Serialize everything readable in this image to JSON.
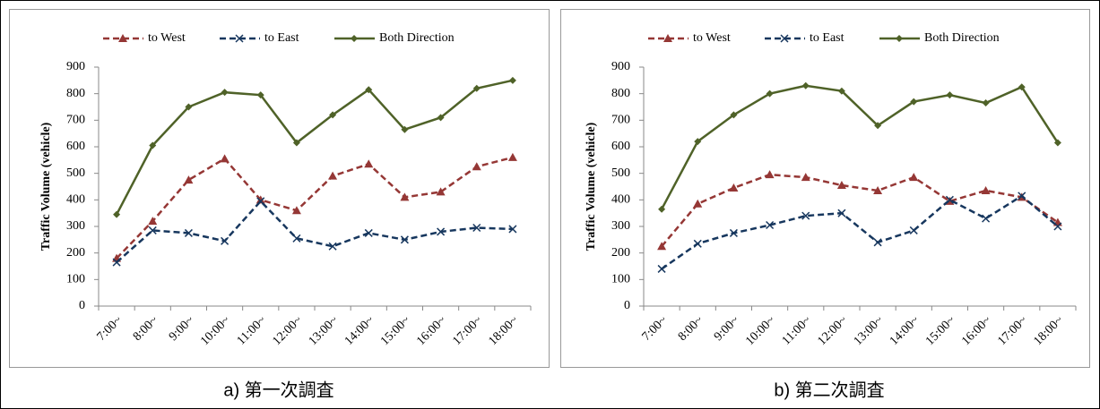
{
  "chart_data": [
    {
      "type": "line",
      "caption": "a)  第一次調査",
      "y_label": "Traffic Volume (vehicle)",
      "legend": "top",
      "categories": [
        "7:00~",
        "8:00~",
        "9:00~",
        "10:00~",
        "11:00~",
        "12:00~",
        "13:00~",
        "14:00~",
        "15:00~",
        "16:00~",
        "17:00~",
        "18:00~"
      ],
      "ylim": [
        0,
        900
      ],
      "yticks": [
        0,
        100,
        200,
        300,
        400,
        500,
        600,
        700,
        800,
        900
      ],
      "series": [
        {
          "name": "to West",
          "color": "#953735",
          "marker": "triangle",
          "linestyle": "dashed",
          "values": [
            180,
            320,
            475,
            555,
            400,
            360,
            490,
            535,
            410,
            430,
            525,
            560
          ]
        },
        {
          "name": "to East",
          "color": "#17375e",
          "marker": "x",
          "linestyle": "dashed",
          "values": [
            165,
            285,
            275,
            245,
            395,
            255,
            225,
            275,
            250,
            280,
            295,
            290
          ]
        },
        {
          "name": "Both Direction",
          "color": "#4f6228",
          "marker": "diamond",
          "linestyle": "solid",
          "values": [
            345,
            605,
            750,
            805,
            795,
            615,
            720,
            815,
            665,
            710,
            820,
            850
          ]
        }
      ]
    },
    {
      "type": "line",
      "caption": "b)  第二次調査",
      "y_label": "Traffic Volume (vehicle)",
      "legend": "top",
      "categories": [
        "7:00~",
        "8:00~",
        "9:00~",
        "10:00~",
        "11:00~",
        "12:00~",
        "13:00~",
        "14:00~",
        "15:00~",
        "16:00~",
        "17:00~",
        "18:00~"
      ],
      "ylim": [
        0,
        900
      ],
      "yticks": [
        0,
        100,
        200,
        300,
        400,
        500,
        600,
        700,
        800,
        900
      ],
      "series": [
        {
          "name": "to West",
          "color": "#953735",
          "marker": "triangle",
          "linestyle": "dashed",
          "values": [
            225,
            385,
            445,
            495,
            485,
            455,
            435,
            485,
            395,
            435,
            410,
            315
          ]
        },
        {
          "name": "to East",
          "color": "#17375e",
          "marker": "x",
          "linestyle": "dashed",
          "values": [
            140,
            235,
            275,
            305,
            340,
            350,
            240,
            285,
            400,
            330,
            415,
            300
          ]
        },
        {
          "name": "Both Direction",
          "color": "#4f6228",
          "marker": "diamond",
          "linestyle": "solid",
          "values": [
            365,
            620,
            720,
            800,
            830,
            810,
            680,
            770,
            795,
            765,
            825,
            615
          ]
        }
      ]
    }
  ]
}
